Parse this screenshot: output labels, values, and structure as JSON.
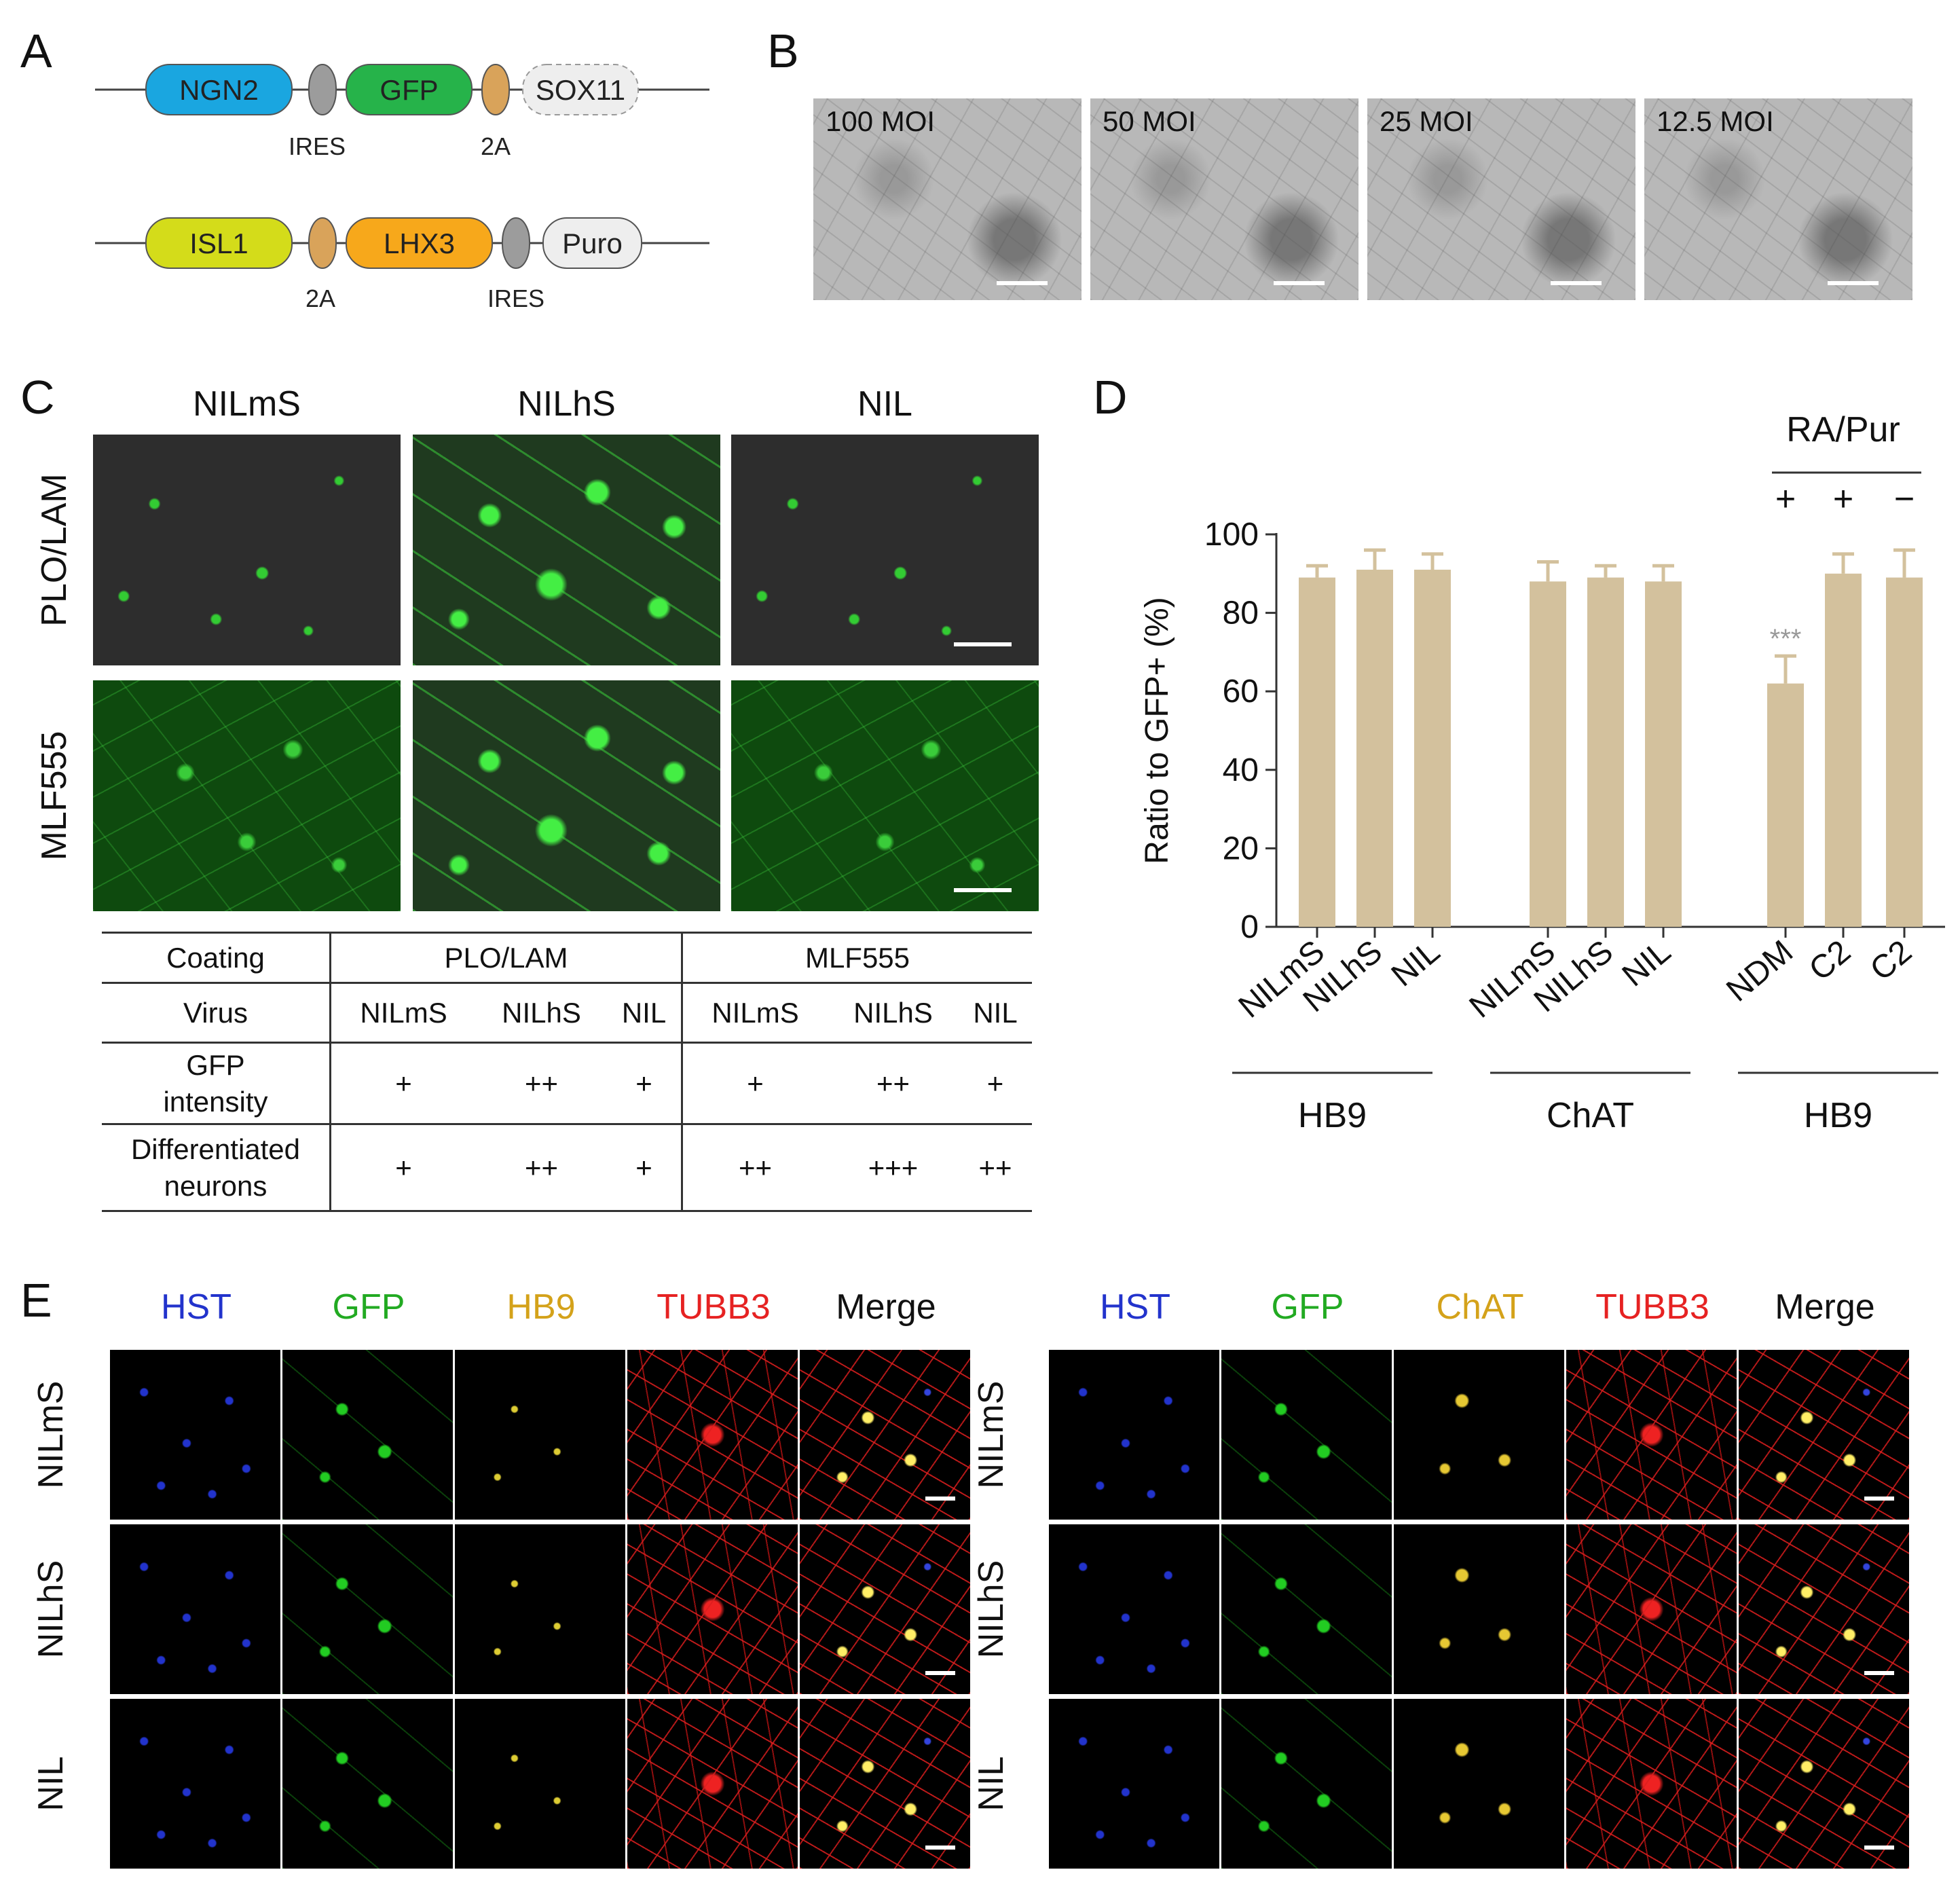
{
  "panel_labels": {
    "a": "A",
    "b": "B",
    "c": "C",
    "d": "D",
    "e": "E"
  },
  "panelA": {
    "construct1": [
      {
        "label": "NGN2",
        "color": "#1aa6e0"
      },
      {
        "label": "",
        "color": "#9c9c9c"
      },
      {
        "label": "GFP",
        "color": "#26b34a"
      },
      {
        "label": "",
        "color": "#d9a35a"
      },
      {
        "label": "SOX11",
        "color": "#eeeeee"
      }
    ],
    "construct1_sublabels": [
      "IRES",
      "2A"
    ],
    "construct2": [
      {
        "label": "ISL1",
        "color": "#d4dc1a"
      },
      {
        "label": "",
        "color": "#d9a35a"
      },
      {
        "label": "LHX3",
        "color": "#f7a81b"
      },
      {
        "label": "",
        "color": "#9c9c9c"
      },
      {
        "label": "Puro",
        "color": "#eeeeee"
      }
    ],
    "construct2_sublabels": [
      "2A",
      "IRES"
    ]
  },
  "panelB": {
    "images": [
      "100 MOI",
      "50 MOI",
      "25 MOI",
      "12.5 MOI"
    ]
  },
  "panelC": {
    "col_headers": [
      "NILmS",
      "NILhS",
      "NIL"
    ],
    "row_headers": [
      "PLO/LAM",
      "MLF555"
    ],
    "table": {
      "coating_label": "Coating",
      "coatings": [
        "PLO/LAM",
        "MLF555"
      ],
      "virus_label": "Virus",
      "viruses": [
        "NILmS",
        "NILhS",
        "NIL",
        "NILmS",
        "NILhS",
        "NIL"
      ],
      "gfp_label_1": "GFP",
      "gfp_label_2": "intensity",
      "gfp": [
        "+",
        "++",
        "+",
        "+",
        "++",
        "+"
      ],
      "diff_label_1": "Differentiated",
      "diff_label_2": "neurons",
      "diff": [
        "+",
        "++",
        "+",
        "++",
        "+++",
        "++"
      ]
    }
  },
  "chart_data": {
    "type": "bar",
    "ylabel": "Ratio to GFP+ (%)",
    "ylim": [
      0,
      100
    ],
    "yticks": [
      "0",
      "20",
      "40",
      "60",
      "80",
      "100"
    ],
    "categories": [
      "NILmS",
      "NILhS",
      "NIL",
      "NILmS",
      "NILhS",
      "NIL",
      "NDM",
      "C2",
      "C2"
    ],
    "groups": [
      "HB9",
      "ChAT",
      "HB9"
    ],
    "values": [
      89,
      91,
      91,
      88,
      89,
      88,
      62,
      90,
      89
    ],
    "errors": [
      3,
      5,
      4,
      5,
      3,
      4,
      7,
      5,
      7
    ],
    "bar_color": "#d3c19d",
    "annotation": "***",
    "ra_pur_label": "RA/Pur",
    "ra_pur_signs": [
      "+",
      "+",
      "−"
    ]
  },
  "panelE": {
    "left_channels": [
      {
        "label": "HST",
        "color": "#2233cc"
      },
      {
        "label": "GFP",
        "color": "#22aa22"
      },
      {
        "label": "HB9",
        "color": "#d4a21a"
      },
      {
        "label": "TUBB3",
        "color": "#e62222"
      },
      {
        "label": "Merge",
        "color": "#111111"
      }
    ],
    "right_channels": [
      {
        "label": "HST",
        "color": "#2233cc"
      },
      {
        "label": "GFP",
        "color": "#22aa22"
      },
      {
        "label": "ChAT",
        "color": "#d4a21a"
      },
      {
        "label": "TUBB3",
        "color": "#e62222"
      },
      {
        "label": "Merge",
        "color": "#111111"
      }
    ],
    "rows": [
      "NILmS",
      "NILhS",
      "NIL"
    ]
  }
}
